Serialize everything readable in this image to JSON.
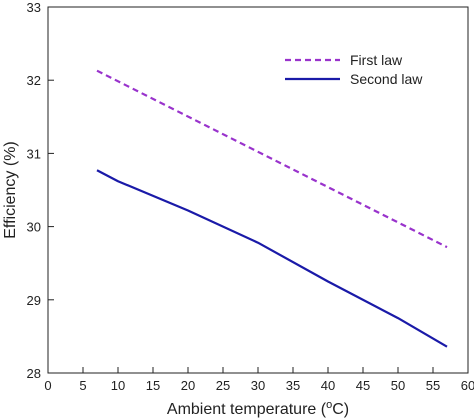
{
  "chart_data": {
    "type": "line",
    "title": "",
    "xlabel": {
      "main": "Ambient temperature (",
      "sup": "o",
      "tail": "C)"
    },
    "ylabel": "Efficiency (%)",
    "xlim": [
      0,
      60
    ],
    "ylim": [
      28,
      33
    ],
    "xticks": [
      0,
      5,
      10,
      15,
      20,
      25,
      30,
      35,
      40,
      45,
      50,
      55,
      60
    ],
    "yticks": [
      28,
      29,
      30,
      31,
      32,
      33
    ],
    "grid": false,
    "legend_position": "top-right",
    "series": [
      {
        "name": "First law",
        "style": "dashed",
        "color": "#9933cc",
        "x": [
          7,
          57
        ],
        "y": [
          32.13,
          29.72
        ]
      },
      {
        "name": "Second law",
        "style": "solid",
        "color": "#1a1aa8",
        "x": [
          7,
          10,
          20,
          30,
          40,
          50,
          57
        ],
        "y": [
          30.77,
          30.62,
          30.22,
          29.78,
          29.25,
          28.75,
          28.36
        ]
      }
    ]
  }
}
